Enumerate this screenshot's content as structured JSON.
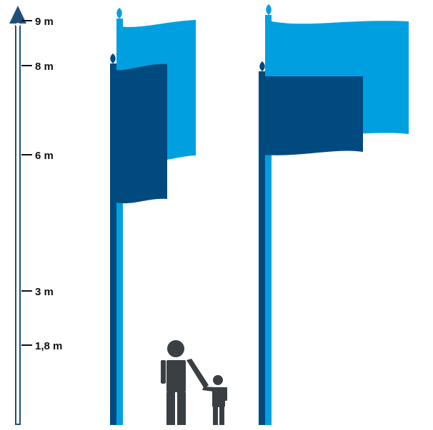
{
  "colors": {
    "light_blue": "#00a0e0",
    "dark_blue": "#004a80",
    "person": "#3a3f44",
    "scale": "#1f4e7a",
    "text": "#111111",
    "background": "#ffffff"
  },
  "scale": {
    "top_icon": "arrow-up-icon",
    "ticks": [
      {
        "value": 9,
        "label": "9 m"
      },
      {
        "value": 8,
        "label": "8 m"
      },
      {
        "value": 6,
        "label": "6 m"
      },
      {
        "value": 3,
        "label": "3 m"
      },
      {
        "value": 1.8,
        "label": "1,8 m"
      }
    ]
  },
  "poles": [
    {
      "group": "left",
      "back_flag": {
        "pole_height_m": 9,
        "color": "light_blue"
      },
      "front_flag": {
        "pole_height_m": 8,
        "color": "dark_blue"
      }
    },
    {
      "group": "right",
      "back_flag": {
        "pole_height_m": 9,
        "color": "light_blue"
      },
      "front_flag": {
        "pole_height_m": 8,
        "color": "dark_blue"
      }
    }
  ],
  "people": [
    {
      "role": "adult",
      "height_m": 1.8,
      "icon": "adult-person-icon"
    },
    {
      "role": "child",
      "icon": "child-person-icon"
    }
  ]
}
